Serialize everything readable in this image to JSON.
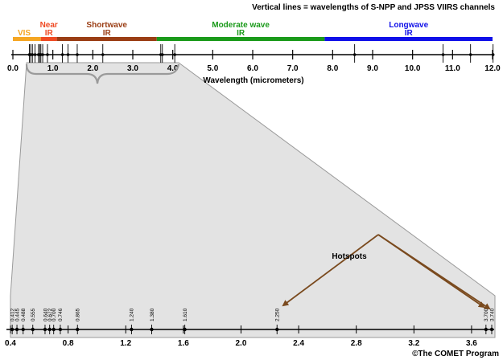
{
  "header_note": "Vertical lines = wavelengths of S-NPP and JPSS VIIRS channels",
  "bands": [
    {
      "id": "vis",
      "label_top": "VIS",
      "label_bottom": "",
      "color": "#f5a623",
      "from": 0.0,
      "to": 0.7
    },
    {
      "id": "nir",
      "label_top": "Near",
      "label_bottom": "IR",
      "color": "#ef4a23",
      "from": 0.7,
      "to": 1.1
    },
    {
      "id": "swir",
      "label_top": "Shortwave",
      "label_bottom": "IR",
      "color": "#9a3d14",
      "from": 1.1,
      "to": 3.6
    },
    {
      "id": "mwir",
      "label_top": "Moderate wave",
      "label_bottom": "IR",
      "color": "#1a9a1a",
      "from": 3.6,
      "to": 7.8
    },
    {
      "id": "lwir",
      "label_top": "Longwave",
      "label_bottom": "IR",
      "color": "#1010e8",
      "from": 7.8,
      "to": 12.0
    }
  ],
  "top_axis": {
    "ticks": [
      "0.0",
      "1.0",
      "2.0",
      "3.0",
      "4.0",
      "5.0",
      "6.0",
      "7.0",
      "8.0",
      "9.0",
      "10.0",
      "11.0",
      "12.0"
    ],
    "title": "Wavelength (micrometers)"
  },
  "viirs_channels_top": [
    0.412,
    0.445,
    0.488,
    0.555,
    0.64,
    0.672,
    0.7,
    0.746,
    0.865,
    1.24,
    1.38,
    1.61,
    2.25,
    3.7,
    3.74,
    4.05,
    8.55,
    10.763,
    11.45,
    12.013
  ],
  "detail_axis": {
    "ticks": [
      "0.4",
      "0.8",
      "1.2",
      "1.6",
      "2.0",
      "2.4",
      "2.8",
      "3.2",
      "3.6"
    ],
    "channel_labels": [
      "0.412",
      "0.445",
      "0.488",
      "0.555",
      "0.640",
      "0.672",
      "0.700",
      "0.746",
      "0.865",
      "1.240",
      "1.380",
      "1.610",
      "2.250",
      "3.700",
      "3.740"
    ]
  },
  "hotspots_label": "Hotspots",
  "copyright": "©The COMET Program",
  "colors": {
    "zoom_fill": "#e3e3e3",
    "zoom_stroke": "#9a9a9a",
    "arrow": "#7a4a1e",
    "axis": "#000000"
  }
}
